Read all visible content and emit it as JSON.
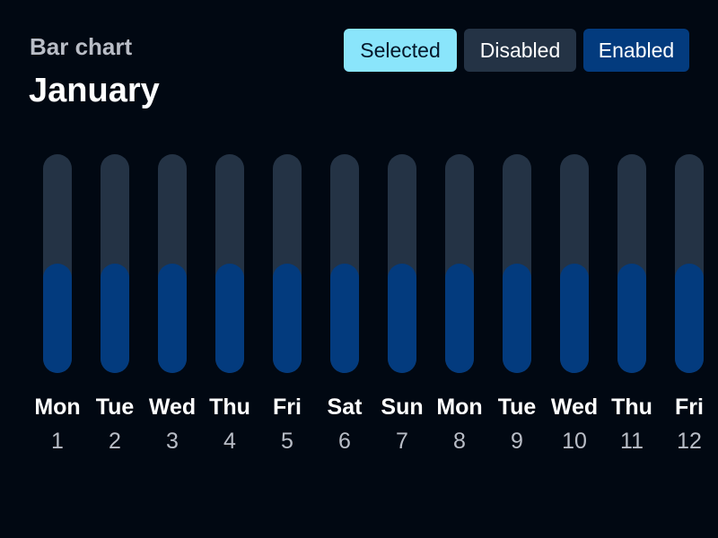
{
  "header": {
    "subtitle": "Bar chart",
    "title": "January"
  },
  "chips": {
    "selected": "Selected",
    "disabled": "Disabled",
    "enabled": "Enabled"
  },
  "colors": {
    "track": "#243345",
    "fill": "#033b7e",
    "selected": "#8ae5fb",
    "background": "#010812"
  },
  "chart_data": {
    "type": "bar",
    "categories": [
      "1",
      "2",
      "3",
      "4",
      "5",
      "6",
      "7",
      "8",
      "9",
      "10",
      "11",
      "12"
    ],
    "day_labels": [
      "Mon",
      "Tue",
      "Wed",
      "Thu",
      "Fri",
      "Sat",
      "Sun",
      "Mon",
      "Tue",
      "Wed",
      "Thu",
      "Fri"
    ],
    "values": [
      0.5,
      0.5,
      0.5,
      0.5,
      0.5,
      0.5,
      0.5,
      0.5,
      0.5,
      0.5,
      0.5,
      0.5
    ],
    "ylim": [
      0,
      1
    ],
    "grid": false
  }
}
